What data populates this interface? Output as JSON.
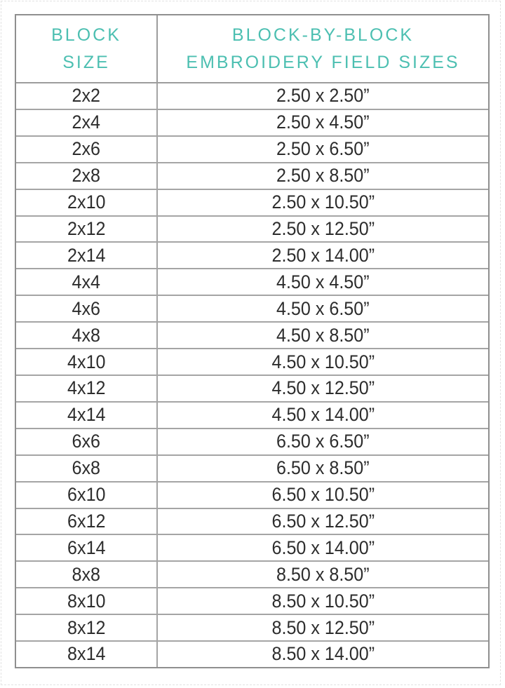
{
  "page_title": "Block-by-Block Embroidery Field Sizes",
  "colors": {
    "header_teal": "#4cbfb1",
    "border_gray": "#9c9c9c",
    "row_rule_gray": "#a5a5a5",
    "text_dark": "#2d2d2d",
    "page_background": "#ffffff"
  },
  "table": {
    "headers": [
      {
        "line1": "BLOCK",
        "line2": "SIZE"
      },
      {
        "line1": "BLOCK-BY-BLOCK",
        "line2": "EMBROIDERY FIELD SIZES"
      }
    ],
    "rows": [
      {
        "size": "2x2",
        "field": "2.50 x 2.50”"
      },
      {
        "size": "2x4",
        "field": "2.50 x 4.50”"
      },
      {
        "size": "2x6",
        "field": "2.50 x 6.50”"
      },
      {
        "size": "2x8",
        "field": "2.50 x 8.50”"
      },
      {
        "size": "2x10",
        "field": "2.50 x 10.50”"
      },
      {
        "size": "2x12",
        "field": "2.50 x 12.50”"
      },
      {
        "size": "2x14",
        "field": "2.50 x 14.00”"
      },
      {
        "size": "4x4",
        "field": "4.50 x 4.50”"
      },
      {
        "size": "4x6",
        "field": "4.50 x 6.50”"
      },
      {
        "size": "4x8",
        "field": "4.50 x 8.50”"
      },
      {
        "size": "4x10",
        "field": "4.50 x 10.50”"
      },
      {
        "size": "4x12",
        "field": "4.50 x 12.50”"
      },
      {
        "size": "4x14",
        "field": "4.50 x 14.00”"
      },
      {
        "size": "6x6",
        "field": "6.50 x 6.50”"
      },
      {
        "size": "6x8",
        "field": "6.50 x 8.50”"
      },
      {
        "size": "6x10",
        "field": "6.50 x 10.50”"
      },
      {
        "size": "6x12",
        "field": "6.50 x 12.50”"
      },
      {
        "size": "6x14",
        "field": "6.50 x 14.00”"
      },
      {
        "size": "8x8",
        "field": "8.50 x 8.50”"
      },
      {
        "size": "8x10",
        "field": "8.50 x 10.50”"
      },
      {
        "size": "8x12",
        "field": "8.50 x 12.50”"
      },
      {
        "size": "8x14",
        "field": "8.50 x 14.00”"
      }
    ]
  },
  "chart_data": {
    "type": "table",
    "title": "Block-by-Block Embroidery Field Sizes",
    "columns": [
      "BLOCK SIZE",
      "BLOCK-BY-BLOCK EMBROIDERY FIELD SIZES"
    ],
    "rows": [
      [
        "2x2",
        "2.50 x 2.50”"
      ],
      [
        "2x4",
        "2.50 x 4.50”"
      ],
      [
        "2x6",
        "2.50 x 6.50”"
      ],
      [
        "2x8",
        "2.50 x 8.50”"
      ],
      [
        "2x10",
        "2.50 x 10.50”"
      ],
      [
        "2x12",
        "2.50 x 12.50”"
      ],
      [
        "2x14",
        "2.50 x 14.00”"
      ],
      [
        "4x4",
        "4.50 x 4.50”"
      ],
      [
        "4x6",
        "4.50 x 6.50”"
      ],
      [
        "4x8",
        "4.50 x 8.50”"
      ],
      [
        "4x10",
        "4.50 x 10.50”"
      ],
      [
        "4x12",
        "4.50 x 12.50”"
      ],
      [
        "4x14",
        "4.50 x 14.00”"
      ],
      [
        "6x6",
        "6.50 x 6.50”"
      ],
      [
        "6x8",
        "6.50 x 8.50”"
      ],
      [
        "6x10",
        "6.50 x 10.50”"
      ],
      [
        "6x12",
        "6.50 x 12.50”"
      ],
      [
        "6x14",
        "6.50 x 14.00”"
      ],
      [
        "8x8",
        "8.50 x 8.50”"
      ],
      [
        "8x10",
        "8.50 x 10.50”"
      ],
      [
        "8x12",
        "8.50 x 12.50”"
      ],
      [
        "8x14",
        "8.50 x 14.00”"
      ]
    ]
  }
}
